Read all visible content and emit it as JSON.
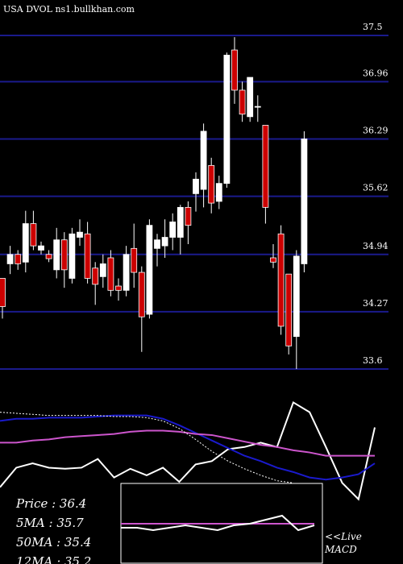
{
  "chart_data": [
    {
      "type": "candlestick",
      "title": "USA DVOL ns1.bullkhan.com",
      "ylim": [
        33.6,
        37.5
      ],
      "yticks": [
        37.5,
        36.96,
        36.29,
        35.62,
        34.94,
        34.27,
        33.6
      ],
      "grid": true,
      "up_color": "#ffffff",
      "down_color": "#cc0000",
      "grid_color": "#1a1a8c",
      "open": [
        34.66,
        34.83,
        34.94,
        34.85,
        35.3,
        34.99,
        34.94,
        34.76,
        35.11,
        34.66,
        35.14,
        35.18,
        34.78,
        34.68,
        34.9,
        34.57,
        34.52,
        35.01,
        34.73,
        34.24,
        35.01,
        35.04,
        35.14,
        35.14,
        35.49,
        35.65,
        35.7,
        35.98,
        35.56,
        35.77,
        37.33,
        36.86,
        36.55,
        36.67,
        36.45,
        34.9,
        35.18,
        34.71,
        33.98,
        34.83
      ],
      "high": [
        34.66,
        35.04,
        34.99,
        35.45,
        35.45,
        35.09,
        34.99,
        35.25,
        35.2,
        35.25,
        35.35,
        35.32,
        34.85,
        34.94,
        34.99,
        34.66,
        35.04,
        35.3,
        34.8,
        35.35,
        35.18,
        35.35,
        35.42,
        35.52,
        35.56,
        35.9,
        36.47,
        36.07,
        35.86,
        37.3,
        37.48,
        36.96,
        37.01,
        36.8,
        36.45,
        35.06,
        35.28,
        34.71,
        34.99,
        36.38
      ],
      "low": [
        34.19,
        34.71,
        34.76,
        34.73,
        34.99,
        34.94,
        34.85,
        34.66,
        34.55,
        34.6,
        35.04,
        34.6,
        34.35,
        34.55,
        34.45,
        34.4,
        34.45,
        34.55,
        33.8,
        34.19,
        34.8,
        34.9,
        34.99,
        34.94,
        35.06,
        35.44,
        35.49,
        35.42,
        35.47,
        35.72,
        36.7,
        36.49,
        36.49,
        36.49,
        35.3,
        34.78,
        34.0,
        33.77,
        33.6,
        34.73
      ],
      "close": [
        34.33,
        34.94,
        34.83,
        35.3,
        35.04,
        35.04,
        34.89,
        35.11,
        34.76,
        35.18,
        35.2,
        34.66,
        34.59,
        34.83,
        34.52,
        34.52,
        34.94,
        34.73,
        34.21,
        35.28,
        35.11,
        35.14,
        35.32,
        35.49,
        35.28,
        35.82,
        36.38,
        35.54,
        35.77,
        37.27,
        36.86,
        36.58,
        37.01,
        36.67,
        35.49,
        34.85,
        34.1,
        33.87,
        34.92,
        36.29
      ]
    },
    {
      "type": "line",
      "xlim": [
        0,
        23
      ],
      "ylim": [
        0,
        100
      ],
      "x": [
        0,
        1,
        2,
        3,
        4,
        5,
        6,
        7,
        8,
        9,
        10,
        11,
        12,
        13,
        14,
        15,
        16,
        17,
        18,
        19,
        20,
        21,
        22,
        23
      ],
      "labels": [
        "Price : 36.4",
        "5MA : 35.7",
        "50MA : 35.4",
        "12MA : 35.2"
      ],
      "series": [
        {
          "color": "#ffffff",
          "values": [
            15,
            33,
            37,
            33,
            32,
            33,
            41,
            24,
            32,
            26,
            33,
            20,
            36,
            39,
            50,
            52,
            56,
            52,
            93,
            84,
            52,
            19,
            4,
            70
          ]
        },
        {
          "color": "#1a1acc",
          "values": [
            76,
            78,
            78,
            79,
            79,
            79,
            80,
            81,
            81,
            81,
            78,
            72,
            65,
            58,
            51,
            44,
            39,
            33,
            29,
            24,
            22,
            24,
            27,
            37
          ]
        },
        {
          "color": "#cc55cc",
          "values": [
            56,
            56,
            58,
            59,
            61,
            62,
            63,
            64,
            66,
            67,
            67,
            66,
            64,
            63,
            60,
            57,
            54,
            52,
            49,
            47,
            44,
            44,
            44,
            44
          ]
        },
        {
          "color": "#ffffff",
          "dashed": true,
          "values": [
            84,
            83,
            82,
            81,
            81,
            81,
            81,
            80,
            80,
            79,
            76,
            69,
            59,
            48,
            39,
            32,
            26,
            21,
            19,
            null,
            null,
            null,
            null,
            null
          ]
        }
      ]
    },
    {
      "type": "line",
      "xlim": [
        0,
        12
      ],
      "ylim": [
        0,
        100
      ],
      "x": [
        0,
        1,
        2,
        3,
        4,
        5,
        6,
        7,
        8,
        9,
        10,
        11,
        12
      ],
      "labels": [
        "<<Live",
        "MACD"
      ],
      "series": [
        {
          "color": "#cc55cc",
          "values": [
            50,
            50,
            50,
            50,
            50,
            50,
            50,
            50,
            50,
            50,
            50,
            50,
            50
          ]
        },
        {
          "color": "#ffffff",
          "values": [
            45,
            45,
            42,
            45,
            48,
            45,
            42,
            48,
            50,
            55,
            60,
            42,
            48
          ]
        }
      ]
    }
  ]
}
